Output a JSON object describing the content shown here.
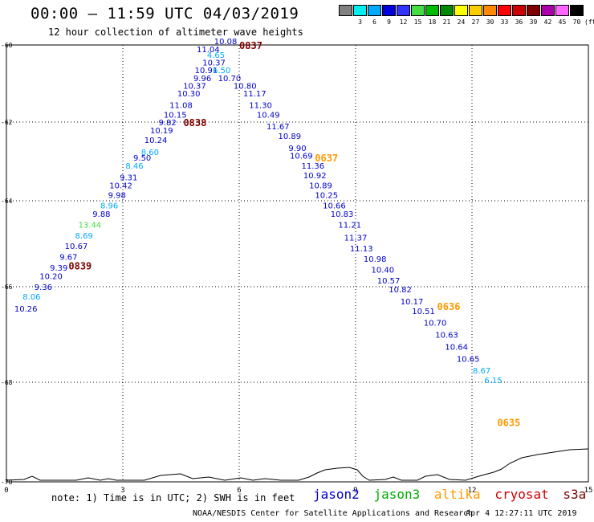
{
  "header": {
    "title": "00:00 — 11:59 UTC 04/03/2019",
    "subtitle": "12 hour collection of altimeter wave heights"
  },
  "scale": {
    "swatches": [
      {
        "label": "",
        "color": "#808080"
      },
      {
        "label": "3",
        "color": "#00eeee"
      },
      {
        "label": "6",
        "color": "#00aaff"
      },
      {
        "label": "9",
        "color": "#0000dd"
      },
      {
        "label": "12",
        "color": "#3333ff"
      },
      {
        "label": "15",
        "color": "#44dd44"
      },
      {
        "label": "18",
        "color": "#00bb00"
      },
      {
        "label": "21",
        "color": "#008800"
      },
      {
        "label": "24",
        "color": "#ffff00"
      },
      {
        "label": "27",
        "color": "#ffcc00"
      },
      {
        "label": "30",
        "color": "#ff8800"
      },
      {
        "label": "33",
        "color": "#ff0000"
      },
      {
        "label": "36",
        "color": "#cc0000"
      },
      {
        "label": "39",
        "color": "#800000"
      },
      {
        "label": "42",
        "color": "#aa00aa"
      },
      {
        "label": "45",
        "color": "#ff66ff"
      },
      {
        "label": "70",
        "color": "#000000"
      }
    ],
    "unit": "(ft)"
  },
  "chart_data": {
    "type": "scatter",
    "xlim": [
      0,
      15
    ],
    "ylim": [
      -70,
      -60
    ],
    "x_ticks": [
      "0",
      "3",
      "6",
      "9",
      "12",
      "15"
    ],
    "y_ticks": [
      "-60",
      "-62",
      "-64",
      "-66",
      "-68",
      "-70"
    ],
    "grid": true,
    "passes": [
      {
        "label": "0837",
        "lon": 6.3,
        "lat": -60.0,
        "color": "#800000"
      },
      {
        "label": "0838",
        "lon": 4.86,
        "lat": -62.0,
        "color": "#800000"
      },
      {
        "label": "0839",
        "lon": 1.9,
        "lat": -65.5,
        "color": "#800000"
      },
      {
        "label": "0637",
        "lon": 8.25,
        "lat": -62.9,
        "color": "#ff9900"
      },
      {
        "label": "0636",
        "lon": 11.4,
        "lat": -66.4,
        "color": "#ff9900"
      },
      {
        "label": "0635",
        "lon": 12.95,
        "lat": -68.8,
        "color": "#ff9900"
      }
    ],
    "points": [
      {
        "value": "10.08",
        "lon": 5.65,
        "lat": -59.9,
        "color": "#0000cc"
      },
      {
        "value": "11.04",
        "lon": 5.2,
        "lat": -60.1,
        "color": "#0000cc"
      },
      {
        "value": "4.65",
        "lon": 5.4,
        "lat": -60.25,
        "color": "#00aaff"
      },
      {
        "value": "10.37",
        "lon": 5.35,
        "lat": -60.45,
        "color": "#0000cc"
      },
      {
        "value": "10.91",
        "lon": 5.15,
        "lat": -60.65,
        "color": "#0000cc"
      },
      {
        "value": "6.50",
        "lon": 5.55,
        "lat": -60.65,
        "color": "#00aaff"
      },
      {
        "value": "9.96",
        "lon": 5.05,
        "lat": -60.85,
        "color": "#0000cc"
      },
      {
        "value": "10.70",
        "lon": 5.75,
        "lat": -60.85,
        "color": "#0000cc"
      },
      {
        "value": "10.37",
        "lon": 4.85,
        "lat": -61.05,
        "color": "#0000cc"
      },
      {
        "value": "10.80",
        "lon": 6.15,
        "lat": -61.05,
        "color": "#0000cc"
      },
      {
        "value": "10.30",
        "lon": 4.7,
        "lat": -61.25,
        "color": "#0000cc"
      },
      {
        "value": "11.17",
        "lon": 6.4,
        "lat": -61.25,
        "color": "#0000cc"
      },
      {
        "value": "11.08",
        "lon": 4.5,
        "lat": -61.55,
        "color": "#0000cc"
      },
      {
        "value": "11.30",
        "lon": 6.55,
        "lat": -61.55,
        "color": "#0000cc"
      },
      {
        "value": "10.15",
        "lon": 4.35,
        "lat": -61.8,
        "color": "#0000cc"
      },
      {
        "value": "10.49",
        "lon": 6.75,
        "lat": -61.8,
        "color": "#0000cc"
      },
      {
        "value": "9.82",
        "lon": 4.15,
        "lat": -62.0,
        "color": "#0000cc"
      },
      {
        "value": "10.19",
        "lon": 4.0,
        "lat": -62.2,
        "color": "#0000cc"
      },
      {
        "value": "11.67",
        "lon": 7.0,
        "lat": -62.1,
        "color": "#0000cc"
      },
      {
        "value": "10.24",
        "lon": 3.85,
        "lat": -62.45,
        "color": "#0000cc"
      },
      {
        "value": "10.89",
        "lon": 7.3,
        "lat": -62.35,
        "color": "#0000cc"
      },
      {
        "value": "8.60",
        "lon": 3.7,
        "lat": -62.75,
        "color": "#00aaff"
      },
      {
        "value": "9.90",
        "lon": 7.5,
        "lat": -62.65,
        "color": "#0000cc"
      },
      {
        "value": "9.50",
        "lon": 3.5,
        "lat": -62.9,
        "color": "#0000cc"
      },
      {
        "value": "10.69",
        "lon": 7.6,
        "lat": -62.85,
        "color": "#0000cc"
      },
      {
        "value": "8.46",
        "lon": 3.3,
        "lat": -63.1,
        "color": "#00aaff"
      },
      {
        "value": "11.36",
        "lon": 7.9,
        "lat": -63.1,
        "color": "#0000cc"
      },
      {
        "value": "9.31",
        "lon": 3.15,
        "lat": -63.4,
        "color": "#0000cc"
      },
      {
        "value": "10.92",
        "lon": 7.95,
        "lat": -63.35,
        "color": "#0000cc"
      },
      {
        "value": "10.42",
        "lon": 2.95,
        "lat": -63.6,
        "color": "#0000cc"
      },
      {
        "value": "10.89",
        "lon": 8.1,
        "lat": -63.6,
        "color": "#0000cc"
      },
      {
        "value": "9.98",
        "lon": 2.85,
        "lat": -63.85,
        "color": "#0000cc"
      },
      {
        "value": "10.25",
        "lon": 8.25,
        "lat": -63.85,
        "color": "#0000cc"
      },
      {
        "value": "8.96",
        "lon": 2.65,
        "lat": -64.1,
        "color": "#00aaff"
      },
      {
        "value": "10.66",
        "lon": 8.45,
        "lat": -64.1,
        "color": "#0000cc"
      },
      {
        "value": "9.88",
        "lon": 2.45,
        "lat": -64.3,
        "color": "#0000cc"
      },
      {
        "value": "10.83",
        "lon": 8.65,
        "lat": -64.3,
        "color": "#0000cc"
      },
      {
        "value": "13.44",
        "lon": 2.15,
        "lat": -64.55,
        "color": "#44dd44"
      },
      {
        "value": "11.21",
        "lon": 8.85,
        "lat": -64.55,
        "color": "#0000cc"
      },
      {
        "value": "8.69",
        "lon": 2.0,
        "lat": -64.8,
        "color": "#00aaff"
      },
      {
        "value": "11.37",
        "lon": 9.0,
        "lat": -64.85,
        "color": "#0000cc"
      },
      {
        "value": "10.67",
        "lon": 1.8,
        "lat": -65.05,
        "color": "#0000cc"
      },
      {
        "value": "11.13",
        "lon": 9.15,
        "lat": -65.1,
        "color": "#0000cc"
      },
      {
        "value": "9.67",
        "lon": 1.6,
        "lat": -65.3,
        "color": "#0000cc"
      },
      {
        "value": "10.98",
        "lon": 9.5,
        "lat": -65.35,
        "color": "#0000cc"
      },
      {
        "value": "9.39",
        "lon": 1.35,
        "lat": -65.55,
        "color": "#0000cc"
      },
      {
        "value": "10.40",
        "lon": 9.7,
        "lat": -65.6,
        "color": "#0000cc"
      },
      {
        "value": "10.20",
        "lon": 1.15,
        "lat": -65.75,
        "color": "#0000cc"
      },
      {
        "value": "10.57",
        "lon": 9.85,
        "lat": -65.85,
        "color": "#0000cc"
      },
      {
        "value": "9.36",
        "lon": 0.95,
        "lat": -66.0,
        "color": "#0000cc"
      },
      {
        "value": "10.82",
        "lon": 10.15,
        "lat": -66.05,
        "color": "#0000cc"
      },
      {
        "value": "8.06",
        "lon": 0.65,
        "lat": -66.2,
        "color": "#00aaff"
      },
      {
        "value": "10.26",
        "lon": 0.5,
        "lat": -66.45,
        "color": "#0000cc"
      },
      {
        "value": "10.17",
        "lon": 10.45,
        "lat": -66.3,
        "color": "#0000cc"
      },
      {
        "value": "10.51",
        "lon": 10.75,
        "lat": -66.5,
        "color": "#0000cc"
      },
      {
        "value": "10.70",
        "lon": 11.05,
        "lat": -66.75,
        "color": "#0000cc"
      },
      {
        "value": "10.63",
        "lon": 11.35,
        "lat": -67.0,
        "color": "#0000cc"
      },
      {
        "value": "10.64",
        "lon": 11.6,
        "lat": -67.25,
        "color": "#0000cc"
      },
      {
        "value": "10.65",
        "lon": 11.9,
        "lat": -67.5,
        "color": "#0000cc"
      },
      {
        "value": "8.67",
        "lon": 12.25,
        "lat": -67.75,
        "color": "#00aaff"
      },
      {
        "value": "6.15",
        "lon": 12.55,
        "lat": -67.95,
        "color": "#00aaff"
      }
    ]
  },
  "footer": {
    "note": "note: 1) Time is in UTC; 2) SWH is in feet",
    "legend": [
      {
        "name": "jason2",
        "color": "#0000cc"
      },
      {
        "name": "jason3",
        "color": "#00aa00"
      },
      {
        "name": "altika",
        "color": "#ff9900"
      },
      {
        "name": "cryosat",
        "color": "#cc0000"
      },
      {
        "name": "s3a",
        "color": "#800000"
      }
    ],
    "credit": "NOAA/NESDIS Center for Satellite Applications and Research",
    "timestamp": "Apr  4 12:27:11 UTC 2019"
  }
}
